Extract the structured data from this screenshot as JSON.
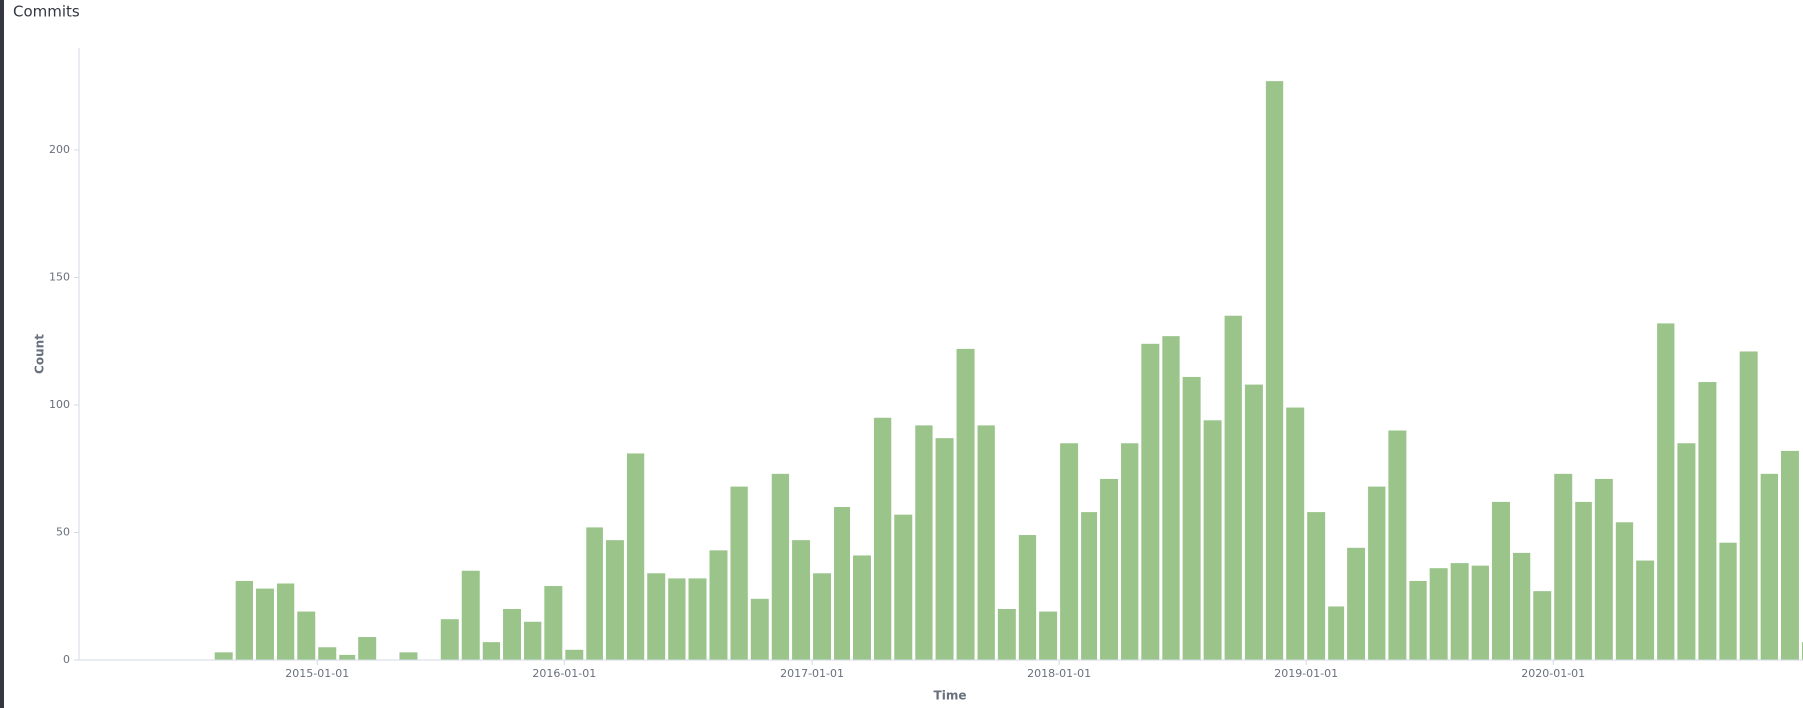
{
  "chart_data": {
    "type": "bar",
    "title": "Commits",
    "x_label": "Time",
    "y_label": "Count",
    "color": "#9ac48a",
    "x": [
      "2014-08-01",
      "2014-09-01",
      "2014-10-01",
      "2014-11-01",
      "2014-12-01",
      "2015-01-01",
      "2015-02-01",
      "2015-03-01",
      "2015-04-01",
      "2015-05-01",
      "2015-06-01",
      "2015-07-01",
      "2015-08-01",
      "2015-09-01",
      "2015-10-01",
      "2015-11-01",
      "2015-12-01",
      "2016-01-01",
      "2016-02-01",
      "2016-03-01",
      "2016-04-01",
      "2016-05-01",
      "2016-06-01",
      "2016-07-01",
      "2016-08-01",
      "2016-09-01",
      "2016-10-01",
      "2016-11-01",
      "2016-12-01",
      "2017-01-01",
      "2017-02-01",
      "2017-03-01",
      "2017-04-01",
      "2017-05-01",
      "2017-06-01",
      "2017-07-01",
      "2017-08-01",
      "2017-09-01",
      "2017-10-01",
      "2017-11-01",
      "2017-12-01",
      "2018-01-01",
      "2018-02-01",
      "2018-03-01",
      "2018-04-01",
      "2018-05-01",
      "2018-06-01",
      "2018-07-01",
      "2018-08-01",
      "2018-09-01",
      "2018-10-01",
      "2018-11-01",
      "2018-12-01",
      "2019-01-01",
      "2019-02-01",
      "2019-03-01",
      "2019-04-01",
      "2019-05-01",
      "2019-06-01",
      "2019-07-01",
      "2019-08-01",
      "2019-09-01",
      "2019-10-01",
      "2019-11-01",
      "2019-12-01",
      "2020-01-01",
      "2020-02-01",
      "2020-03-01",
      "2020-04-01",
      "2020-05-01",
      "2020-06-01",
      "2020-07-01",
      "2020-08-01",
      "2020-09-01",
      "2020-10-01",
      "2020-11-01",
      "2020-12-01",
      "2021-01-01"
    ],
    "values": [
      3,
      31,
      28,
      30,
      19,
      5,
      2,
      9,
      0,
      3,
      0,
      16,
      35,
      7,
      20,
      15,
      29,
      4,
      52,
      47,
      81,
      34,
      32,
      32,
      43,
      68,
      24,
      73,
      47,
      34,
      60,
      41,
      95,
      57,
      92,
      87,
      122,
      92,
      20,
      49,
      19,
      85,
      58,
      71,
      85,
      124,
      127,
      111,
      94,
      135,
      108,
      227,
      99,
      58,
      21,
      44,
      68,
      90,
      31,
      36,
      38,
      37,
      62,
      42,
      27,
      73,
      62,
      71,
      54,
      39,
      132,
      85,
      109,
      46,
      121,
      73,
      82,
      7
    ],
    "xlim": [
      "2014-01-14",
      "2021-01-04"
    ],
    "xticks": [
      "2015-01-01",
      "2016-01-01",
      "2017-01-01",
      "2018-01-01",
      "2019-01-01",
      "2020-01-01"
    ],
    "ylim": [
      0,
      240
    ],
    "yticks": [
      0,
      50,
      100,
      150,
      200
    ],
    "grid": false
  }
}
